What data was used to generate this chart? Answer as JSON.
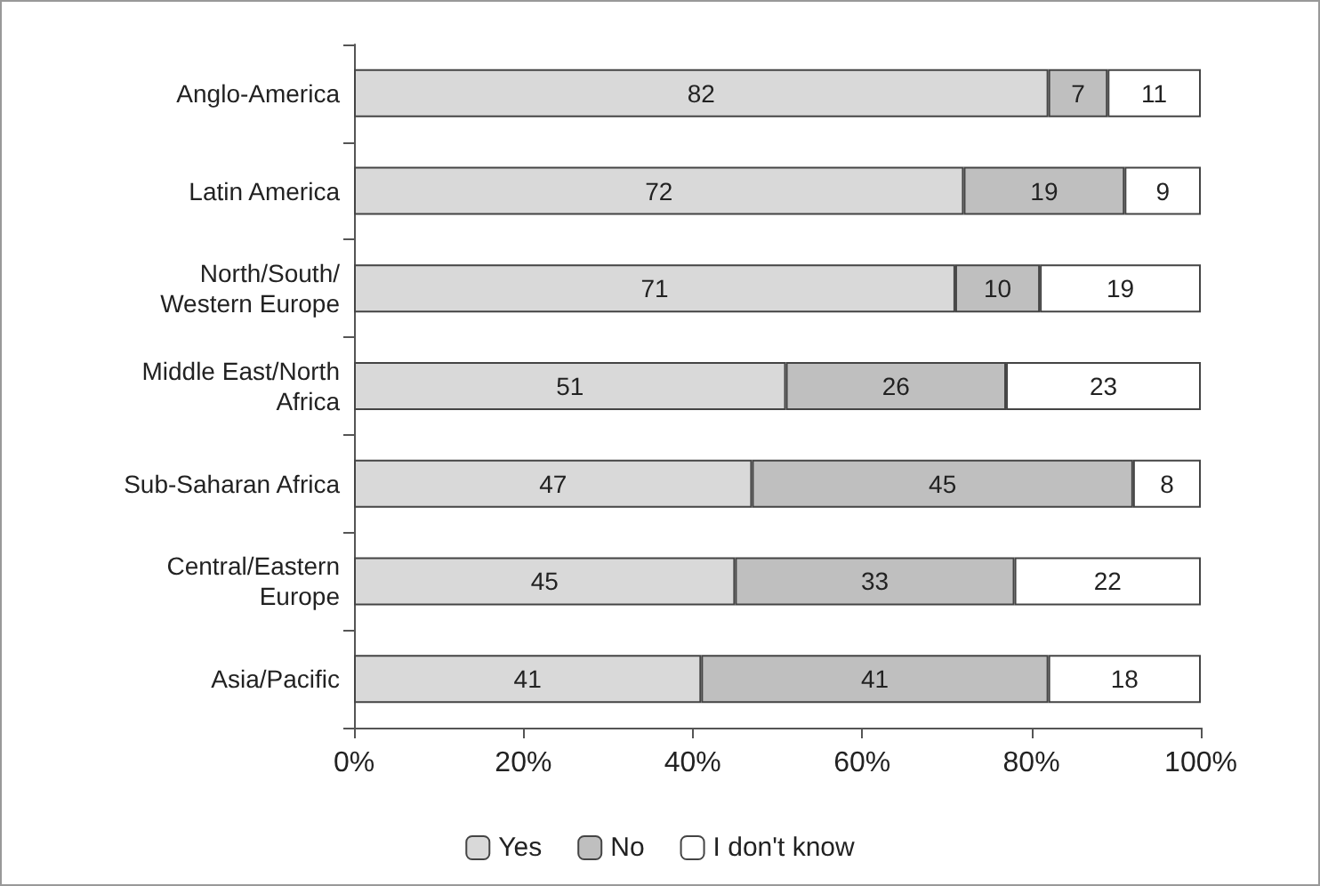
{
  "chart_data": {
    "type": "bar",
    "orientation": "horizontal",
    "stacked": true,
    "data_labels": true,
    "legend": "bottom",
    "grid": false,
    "categories": [
      "Anglo-America",
      "Latin America",
      "North/South/\nWestern Europe",
      "Middle East/North\nAfrica",
      "Sub-Saharan Africa",
      "Central/Eastern\nEurope",
      "Asia/Pacific"
    ],
    "series": [
      {
        "name": "Yes",
        "color": "#d9d9d9",
        "values": [
          82,
          72,
          71,
          51,
          47,
          45,
          41
        ]
      },
      {
        "name": "No",
        "color": "#bfbfbf",
        "values": [
          7,
          19,
          10,
          26,
          45,
          33,
          41
        ]
      },
      {
        "name": "I don't know",
        "color": "#ffffff",
        "values": [
          11,
          9,
          19,
          23,
          8,
          22,
          18
        ]
      }
    ],
    "xlim": [
      0,
      100
    ],
    "xticks": [
      {
        "value": 0,
        "label": "0%"
      },
      {
        "value": 20,
        "label": "20%"
      },
      {
        "value": 40,
        "label": "40%"
      },
      {
        "value": 60,
        "label": "60%"
      },
      {
        "value": 80,
        "label": "80%"
      },
      {
        "value": 100,
        "label": "100%"
      }
    ]
  }
}
